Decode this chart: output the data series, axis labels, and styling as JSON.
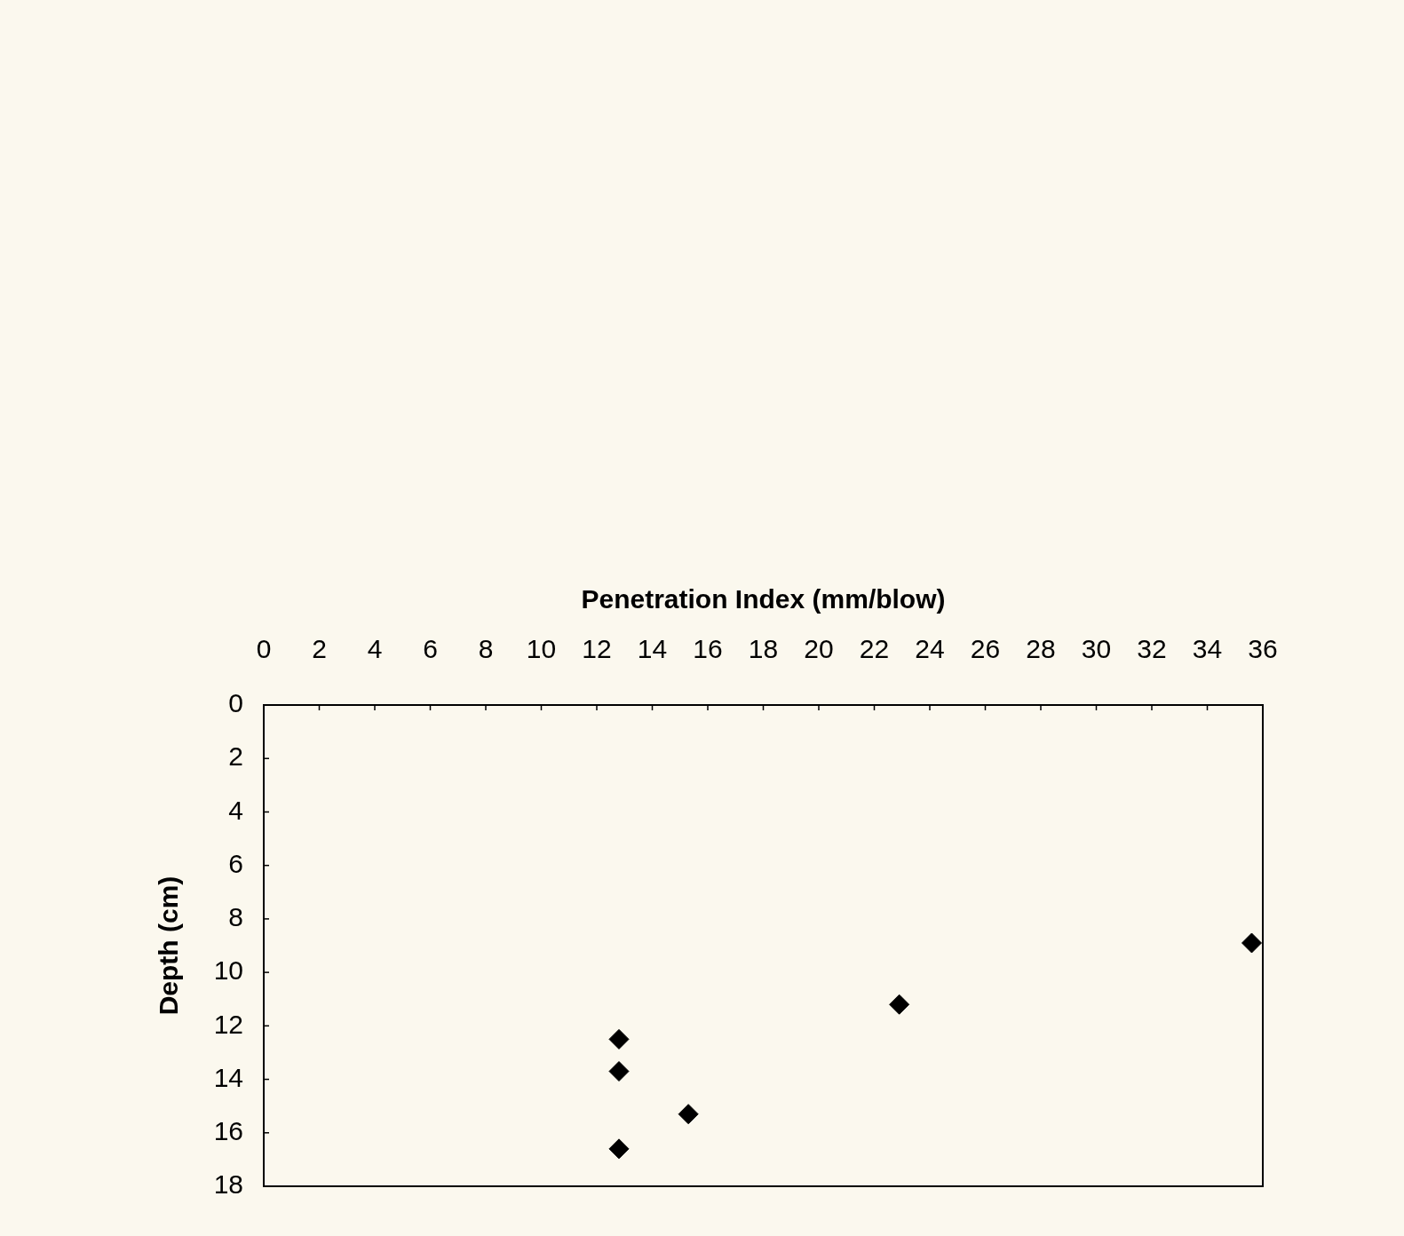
{
  "chart_data": {
    "type": "scatter",
    "xlabel": "Penetration Index (mm/blow)",
    "ylabel": "Depth (cm)",
    "x": [
      12.8,
      12.8,
      15.3,
      12.8,
      22.9,
      35.6
    ],
    "values": [
      12.5,
      13.7,
      15.3,
      16.6,
      11.2,
      8.9
    ],
    "color": "#000000",
    "marker": "diamond",
    "xlim": [
      0,
      36
    ],
    "xticks": [
      0,
      2,
      4,
      6,
      8,
      10,
      12,
      14,
      16,
      18,
      20,
      22,
      24,
      26,
      28,
      30,
      32,
      34,
      36
    ],
    "ylim": [
      18,
      0
    ],
    "yticks": [
      0,
      2,
      4,
      6,
      8,
      10,
      12,
      14,
      16,
      18
    ]
  }
}
